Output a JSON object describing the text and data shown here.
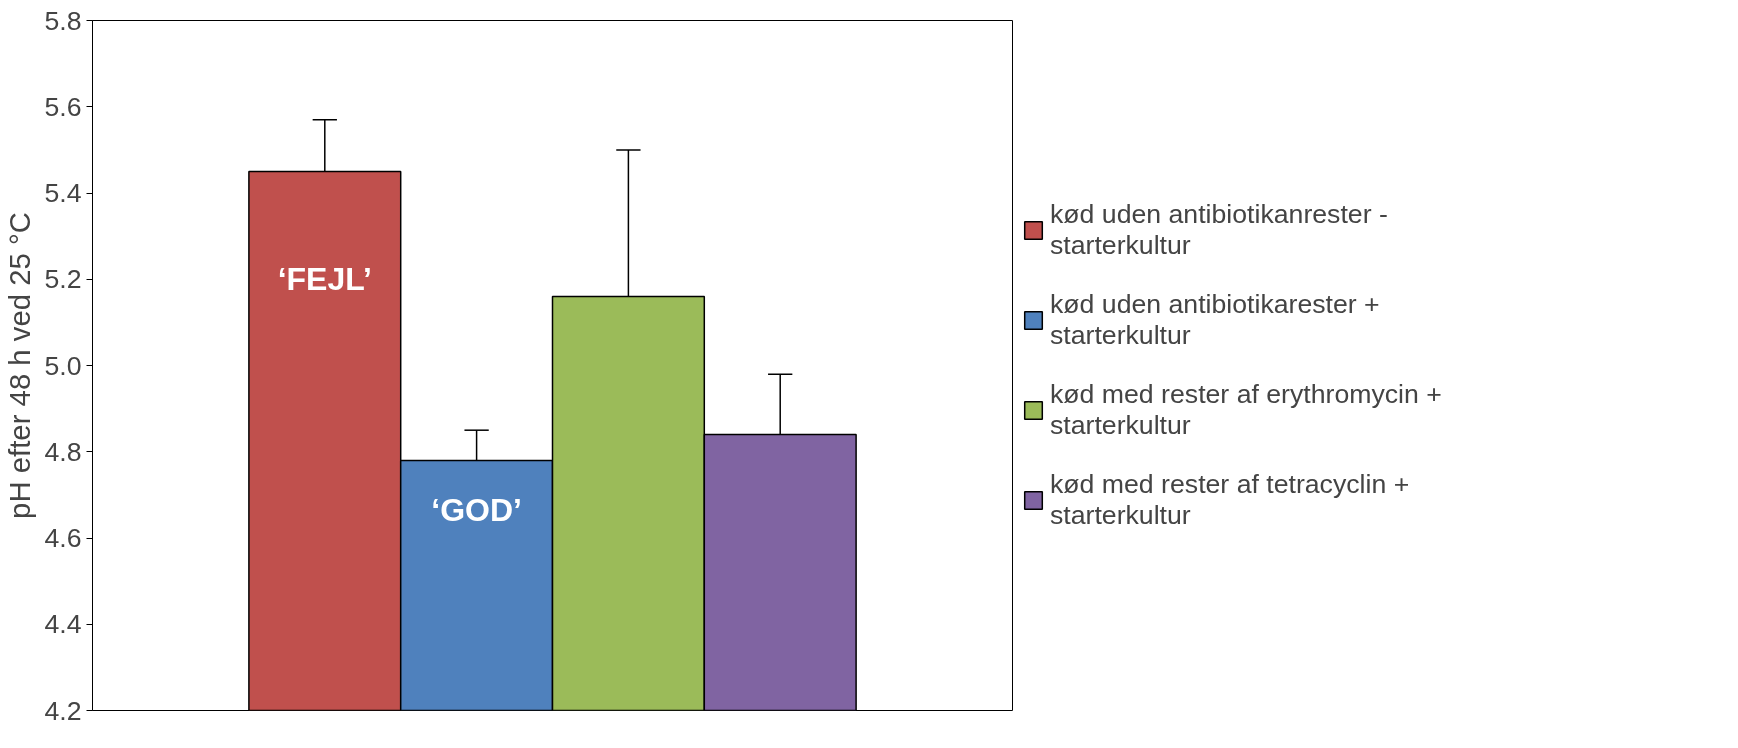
{
  "chart_data": {
    "type": "bar",
    "ylabel": "pH efter 48 h ved 25 °C",
    "categories": [
      null
    ],
    "series": [
      {
        "name": "kød uden antibiotikanrester - starterkultur",
        "color": "#c0504d",
        "values": [
          5.45
        ],
        "errors": [
          [
            5.45,
            5.57
          ]
        ]
      },
      {
        "name": "kød uden antibiotikarester + starterkultur",
        "color": "#4f81bd",
        "values": [
          4.78
        ],
        "errors": [
          [
            4.78,
            4.85
          ]
        ]
      },
      {
        "name": "kød med rester af erythromycin + starterkultur",
        "color": "#9bbb59",
        "values": [
          5.16
        ],
        "errors": [
          [
            5.16,
            5.5
          ]
        ]
      },
      {
        "name": "kød med rester af tetracyclin + starterkultur",
        "color": "#8064a2",
        "values": [
          4.84
        ],
        "errors": [
          [
            4.84,
            4.98
          ]
        ]
      }
    ],
    "annotations": [
      "‘FEJL’",
      "‘GOD’"
    ],
    "ylim": [
      4.2,
      5.8
    ],
    "yticks": [
      4.2,
      4.4,
      4.6,
      4.8,
      {
        "value": 5.0,
        "label": "5.0"
      },
      5.2,
      5.4,
      5.6,
      5.8
    ],
    "grid": false,
    "legend": "right"
  }
}
